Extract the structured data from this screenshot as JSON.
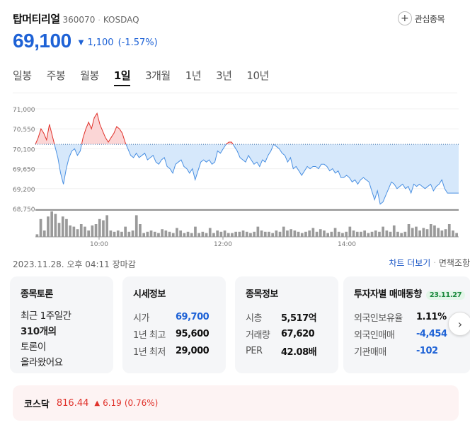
{
  "stock": {
    "name": "탑머티리얼",
    "code": "360070",
    "separator": "·",
    "market": "KOSDAQ",
    "price": "69,100",
    "change_arrow": "▼",
    "change": "1,100",
    "change_pct": "(-1.57%)",
    "watch_icon": "+",
    "watch_label": "관심종목"
  },
  "tabs": [
    {
      "label": "일봉",
      "active": false
    },
    {
      "label": "주봉",
      "active": false
    },
    {
      "label": "월봉",
      "active": false
    },
    {
      "label": "1일",
      "active": true
    },
    {
      "label": "3개월",
      "active": false
    },
    {
      "label": "1년",
      "active": false
    },
    {
      "label": "3년",
      "active": false
    },
    {
      "label": "10년",
      "active": false
    }
  ],
  "chart_data": {
    "type": "line",
    "ylabels": [
      "71,000",
      "70,550",
      "70,100",
      "69,650",
      "69,200",
      "68,750"
    ],
    "ylim": [
      68750,
      71000
    ],
    "xlabels": [
      "10:00",
      "12:00",
      "14:00"
    ],
    "reference_price": 70200,
    "series": [
      {
        "values": [
          70200,
          70350,
          70550,
          70450,
          70300,
          70650,
          70400,
          70150,
          69900,
          69550,
          69300,
          69650,
          69900,
          70050,
          70100,
          69950,
          70050,
          70350,
          70550,
          70700,
          70550,
          70800,
          70900,
          70650,
          70500,
          70350,
          70250,
          70350,
          70450,
          70600,
          70550,
          70450,
          70250,
          70100,
          69950,
          69900,
          70000,
          69900,
          69950,
          70000,
          69850,
          69900,
          69950,
          69800,
          69750,
          69850,
          69900,
          69700,
          69650,
          69550,
          69750,
          69800,
          69850,
          69700,
          69650,
          69550,
          69650,
          69400,
          69600,
          69800,
          69850,
          69800,
          69850,
          69750,
          69800,
          70050,
          70000,
          70100,
          70200,
          70250,
          70250,
          70150,
          70050,
          69900,
          69850,
          69800,
          69950,
          69850,
          69750,
          69800,
          69700,
          69850,
          69800,
          69950,
          70050,
          70200,
          70150,
          70100,
          70000,
          69950,
          69800,
          69900,
          69650,
          69700,
          69600,
          69500,
          69600,
          69700,
          69650,
          69700,
          69700,
          69650,
          69750,
          69750,
          69700,
          69600,
          69650,
          69550,
          69600,
          69450,
          69450,
          69500,
          69450,
          69350,
          69400,
          69300,
          69400,
          69450,
          69400,
          69350,
          69150,
          68950,
          69150,
          68850,
          68900,
          69050,
          69200,
          69350,
          69300,
          69200,
          69250,
          69300,
          69200,
          69250,
          69100,
          69300,
          69250,
          69300,
          69250,
          69200,
          69250,
          69300,
          69150,
          69250,
          69300,
          69400,
          69200,
          69100,
          69100,
          69100,
          69100,
          69100
        ]
      }
    ],
    "volume": [
      2,
      14,
      5,
      16,
      20,
      18,
      11,
      16,
      14,
      9,
      8,
      6,
      10,
      8,
      5,
      9,
      10,
      14,
      13,
      17,
      5,
      4,
      5,
      4,
      8,
      4,
      5,
      17,
      10,
      3,
      4,
      5,
      4,
      3,
      6,
      5,
      4,
      3,
      7,
      5,
      3,
      4,
      3,
      8,
      3,
      4,
      3,
      7,
      3,
      5,
      4,
      5,
      3,
      3,
      4,
      4,
      5,
      4,
      3,
      4,
      8,
      5,
      4,
      4,
      3,
      5,
      4,
      8,
      5,
      6,
      5,
      4,
      3,
      4,
      5,
      7,
      4,
      6,
      5,
      3,
      4,
      7,
      4,
      3,
      4,
      8,
      5,
      4,
      4,
      5,
      3,
      4,
      5,
      4,
      8,
      5,
      4,
      9,
      4,
      3,
      4,
      10,
      7,
      8,
      5,
      7,
      6,
      10,
      9,
      7,
      5,
      6,
      10,
      5,
      3
    ]
  },
  "session": {
    "date_time": "2023.11.28. 오후 04:11 장마감",
    "more_chart": "차트 더보기",
    "separator": "·",
    "exemption": "면책조항"
  },
  "cards": {
    "discussion": {
      "title": "종목토론",
      "line1": "최근 1주일간",
      "count": "310개의",
      "line3": "토론이",
      "line4": "올라왔어요"
    },
    "quote": {
      "title": "시세정보",
      "rows": [
        {
          "k": "시가",
          "v": "69,700"
        },
        {
          "k": "1년 최고",
          "v": "95,600"
        },
        {
          "k": "1년 최저",
          "v": "29,000"
        }
      ]
    },
    "info": {
      "title": "종목정보",
      "rows": [
        {
          "k": "시총",
          "v": "5,517억"
        },
        {
          "k": "거래량",
          "v": "67,620"
        },
        {
          "k": "PER",
          "v": "42.08배"
        }
      ]
    },
    "investor": {
      "title": "투자자별 매매동향",
      "badge": "23.11.27",
      "rows": [
        {
          "k": "외국인보유율",
          "v": "1.11%"
        },
        {
          "k": "외국인매매",
          "v": "-4,454"
        },
        {
          "k": "기관매매",
          "v": "-102"
        }
      ]
    },
    "next_icon": "›"
  },
  "index": {
    "name": "코스닥",
    "value": "816.44",
    "arrow": "▲",
    "change": "6.19",
    "pct": "(0.76%)"
  },
  "colors": {
    "price_blue": "#1e62d6",
    "up_red": "#e0312a",
    "line_blue": "#4a90e2",
    "fill_blue": "#d6e8fb",
    "fill_red": "#fbd6d6",
    "reference_line": "#3a6ea8"
  }
}
